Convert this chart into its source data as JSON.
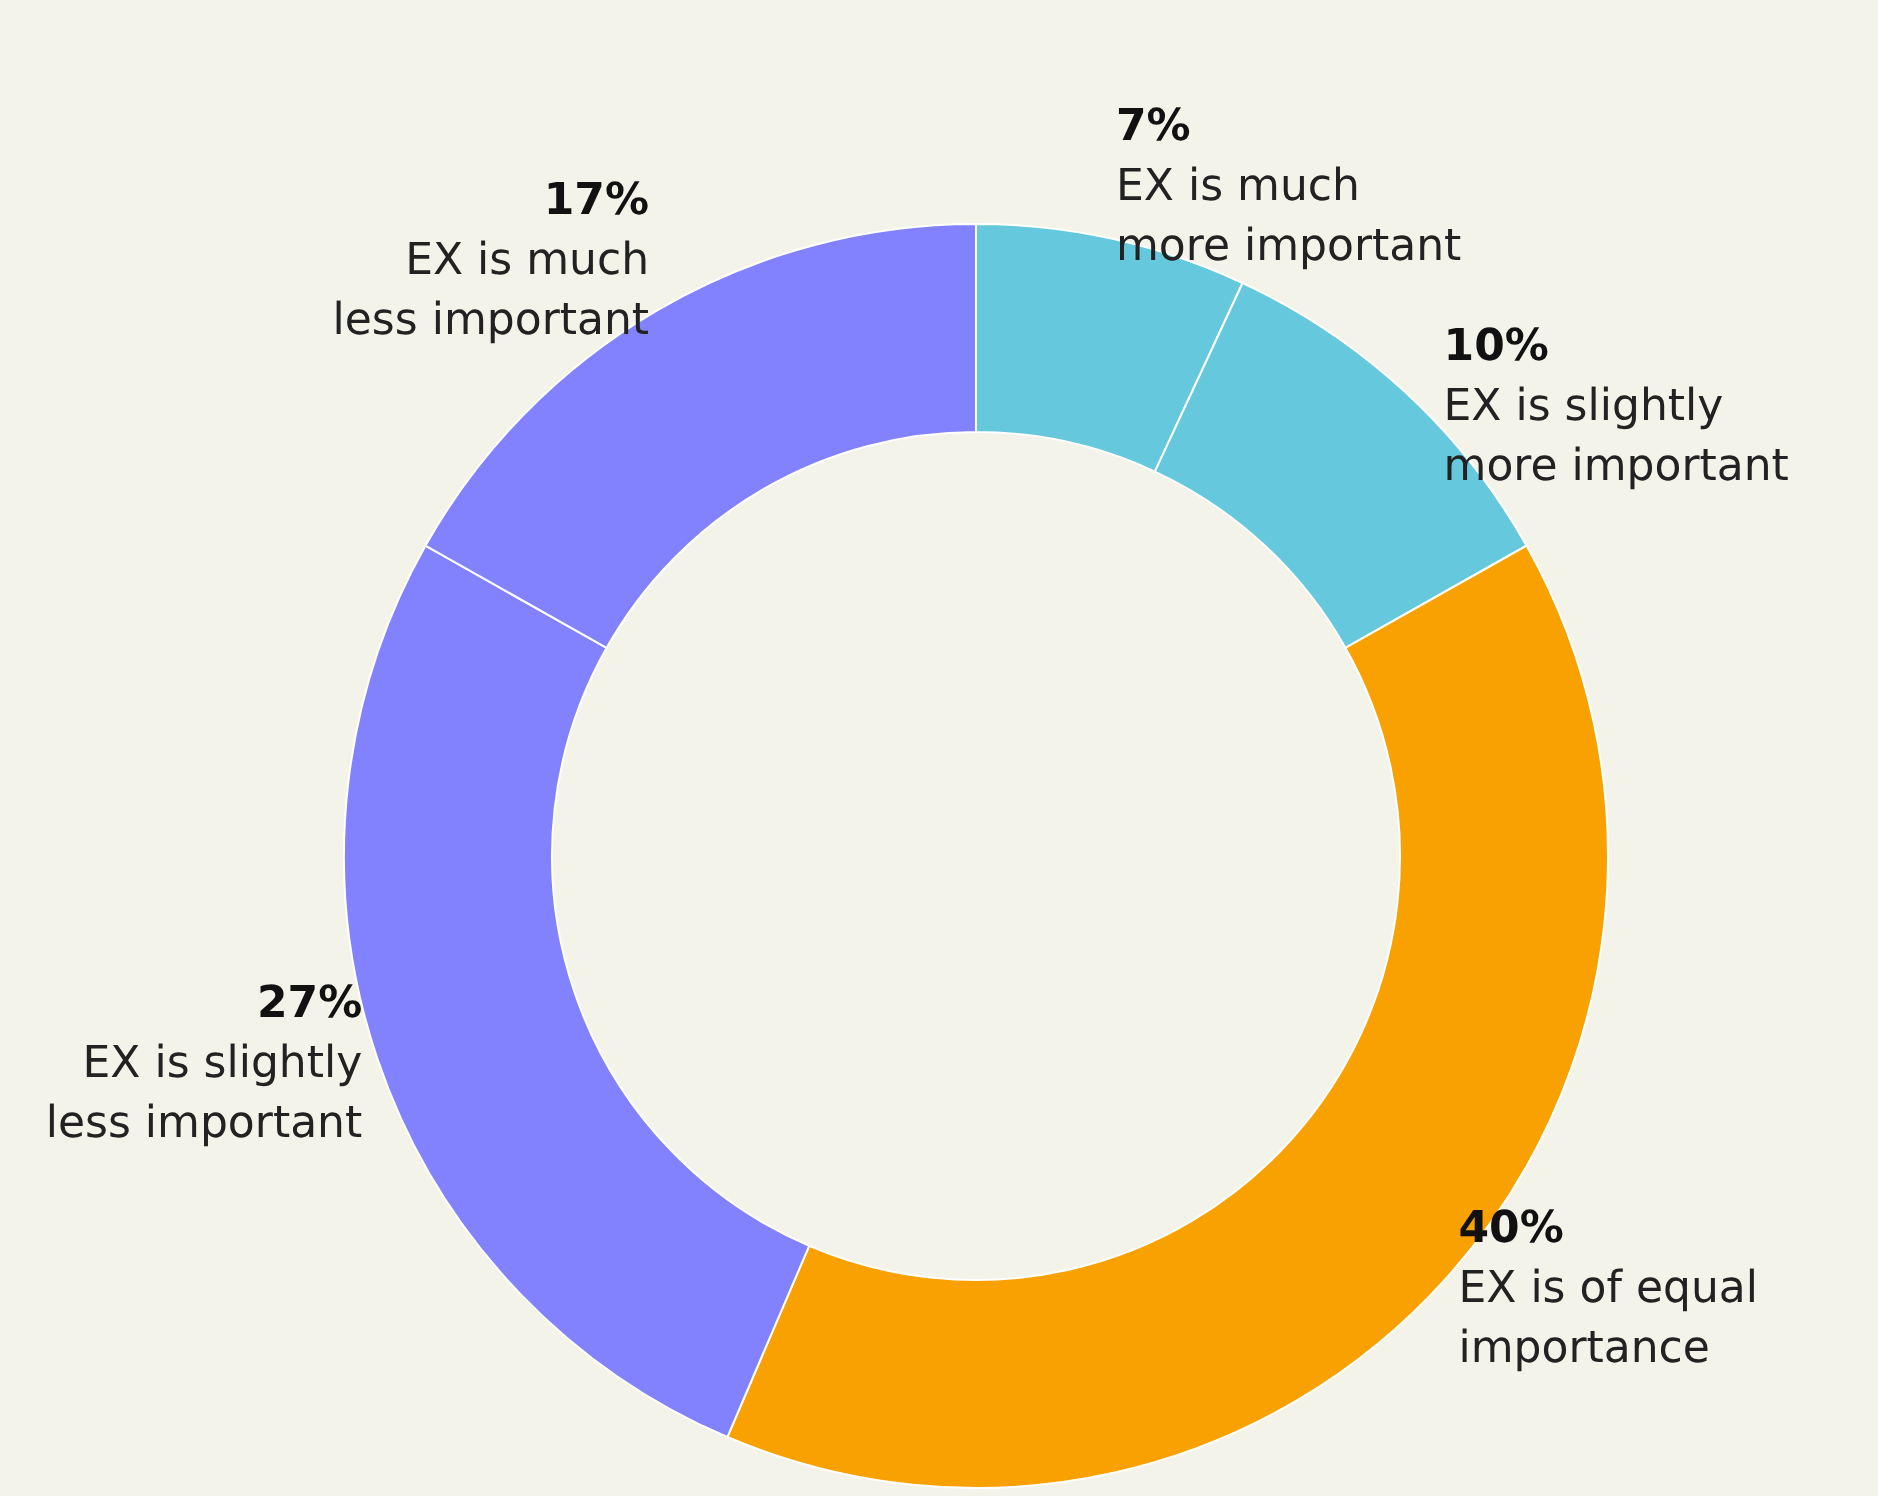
{
  "chart_data": {
    "type": "donut",
    "categories": [
      "EX is much more important",
      "EX is slightly more important",
      "EX is of equal importance",
      "EX is slightly less important",
      "EX is much less important"
    ],
    "values": [
      7,
      10,
      40,
      27,
      17
    ],
    "value_labels": [
      "7%",
      "10%",
      "40%",
      "27%",
      "17%"
    ],
    "colors": [
      "#65c8dc",
      "#65c8dc",
      "#f9a100",
      "#8282ff",
      "#8282ff"
    ],
    "legend": false
  }
}
